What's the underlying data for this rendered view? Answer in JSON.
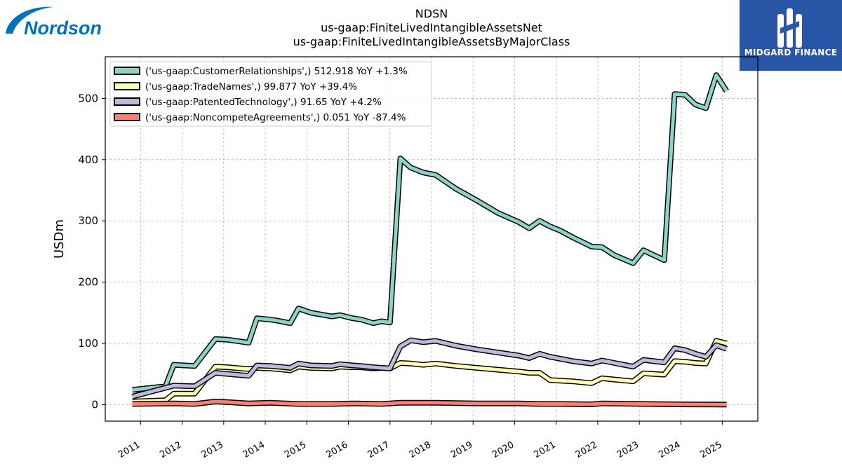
{
  "logos": {
    "left_text": "Nordson",
    "right_text": "MIDGARD FINANCE"
  },
  "colors": {
    "customer_relationships": "#8dd3c7",
    "trade_names": "#ffffb3",
    "patented_technology": "#bebada",
    "noncompete_agreements": "#fb8072",
    "brand_blue": "#0072bc",
    "midgard_blue": "#2a56a8"
  },
  "chart_data": {
    "type": "line",
    "title": [
      "NDSN",
      "us-gaap:FiniteLivedIntangibleAssetsNet",
      "us-gaap:FiniteLivedIntangibleAssetsByMajorClass"
    ],
    "xlabel": "",
    "ylabel": "USDm",
    "ylim": [
      -27,
      568
    ],
    "xlim": [
      2010.15,
      2025.85
    ],
    "yticks": [
      0,
      100,
      200,
      300,
      400,
      500
    ],
    "xticks": [
      "2011",
      "2012",
      "2013",
      "2014",
      "2015",
      "2016",
      "2017",
      "2018",
      "2019",
      "2020",
      "2021",
      "2022",
      "2023",
      "2024",
      "2025"
    ],
    "grid": true,
    "legend_position": "top-left",
    "series": [
      {
        "name": "('us-gaap:CustomerRelationships',) 512.918 YoY +1.3%",
        "color": "#8dd3c7",
        "points": [
          [
            2010.8,
            24
          ],
          [
            2011.6,
            30
          ],
          [
            2011.8,
            65
          ],
          [
            2012.3,
            63
          ],
          [
            2012.8,
            107
          ],
          [
            2013.1,
            106
          ],
          [
            2013.6,
            101
          ],
          [
            2013.8,
            141
          ],
          [
            2014.1,
            139
          ],
          [
            2014.3,
            137
          ],
          [
            2014.6,
            133
          ],
          [
            2014.8,
            157
          ],
          [
            2015.1,
            150
          ],
          [
            2015.6,
            144
          ],
          [
            2015.8,
            146
          ],
          [
            2016.1,
            141
          ],
          [
            2016.3,
            139
          ],
          [
            2016.6,
            133
          ],
          [
            2016.8,
            136
          ],
          [
            2017.0,
            134
          ],
          [
            2017.25,
            402
          ],
          [
            2017.5,
            387
          ],
          [
            2017.8,
            379
          ],
          [
            2018.1,
            375
          ],
          [
            2018.6,
            352
          ],
          [
            2019.1,
            333
          ],
          [
            2019.6,
            313
          ],
          [
            2020.1,
            298
          ],
          [
            2020.35,
            288
          ],
          [
            2020.6,
            300
          ],
          [
            2020.85,
            291
          ],
          [
            2021.1,
            284
          ],
          [
            2021.4,
            273
          ],
          [
            2021.85,
            258
          ],
          [
            2022.1,
            257
          ],
          [
            2022.4,
            244
          ],
          [
            2022.85,
            231
          ],
          [
            2023.1,
            252
          ],
          [
            2023.6,
            236
          ],
          [
            2023.85,
            507
          ],
          [
            2024.1,
            506
          ],
          [
            2024.35,
            490
          ],
          [
            2024.6,
            484
          ],
          [
            2024.85,
            538
          ],
          [
            2025.1,
            512
          ]
        ]
      },
      {
        "name": "('us-gaap:TradeNames',) 99.877 YoY +39.4%",
        "color": "#ffffb3",
        "points": [
          [
            2010.8,
            5
          ],
          [
            2011.6,
            7
          ],
          [
            2011.8,
            18
          ],
          [
            2012.3,
            18
          ],
          [
            2012.8,
            62
          ],
          [
            2013.1,
            61
          ],
          [
            2013.6,
            58
          ],
          [
            2013.8,
            60
          ],
          [
            2014.1,
            59
          ],
          [
            2014.3,
            58
          ],
          [
            2014.6,
            56
          ],
          [
            2014.8,
            62
          ],
          [
            2015.1,
            60
          ],
          [
            2015.6,
            59
          ],
          [
            2015.8,
            62
          ],
          [
            2016.1,
            61
          ],
          [
            2016.3,
            61
          ],
          [
            2016.6,
            59
          ],
          [
            2016.8,
            60
          ],
          [
            2017.0,
            59
          ],
          [
            2017.25,
            68
          ],
          [
            2017.5,
            67
          ],
          [
            2017.8,
            65
          ],
          [
            2018.1,
            67
          ],
          [
            2018.6,
            63
          ],
          [
            2019.1,
            60
          ],
          [
            2019.6,
            57
          ],
          [
            2020.1,
            54
          ],
          [
            2020.35,
            52
          ],
          [
            2020.6,
            52
          ],
          [
            2020.85,
            40
          ],
          [
            2021.1,
            39
          ],
          [
            2021.4,
            38
          ],
          [
            2021.85,
            35
          ],
          [
            2022.1,
            43
          ],
          [
            2022.4,
            41
          ],
          [
            2022.85,
            38
          ],
          [
            2023.1,
            51
          ],
          [
            2023.6,
            49
          ],
          [
            2023.85,
            71
          ],
          [
            2024.1,
            70
          ],
          [
            2024.35,
            68
          ],
          [
            2024.6,
            67
          ],
          [
            2024.85,
            104
          ],
          [
            2025.1,
            100
          ]
        ]
      },
      {
        "name": "('us-gaap:PatentedTechnology',) 91.65 YoY +4.2%",
        "color": "#bebada",
        "points": [
          [
            2010.8,
            13
          ],
          [
            2011.8,
            31
          ],
          [
            2012.3,
            30
          ],
          [
            2012.8,
            52
          ],
          [
            2013.1,
            50
          ],
          [
            2013.6,
            47
          ],
          [
            2013.8,
            64
          ],
          [
            2014.1,
            63
          ],
          [
            2014.3,
            62
          ],
          [
            2014.6,
            60
          ],
          [
            2014.8,
            67
          ],
          [
            2015.1,
            64
          ],
          [
            2015.6,
            63
          ],
          [
            2015.8,
            66
          ],
          [
            2016.1,
            64
          ],
          [
            2016.3,
            63
          ],
          [
            2016.6,
            61
          ],
          [
            2016.8,
            60
          ],
          [
            2017.0,
            59
          ],
          [
            2017.25,
            95
          ],
          [
            2017.5,
            105
          ],
          [
            2017.8,
            102
          ],
          [
            2018.1,
            104
          ],
          [
            2018.6,
            96
          ],
          [
            2019.1,
            90
          ],
          [
            2019.6,
            85
          ],
          [
            2020.1,
            80
          ],
          [
            2020.35,
            76
          ],
          [
            2020.6,
            83
          ],
          [
            2020.85,
            78
          ],
          [
            2021.1,
            75
          ],
          [
            2021.4,
            71
          ],
          [
            2021.85,
            67
          ],
          [
            2022.1,
            72
          ],
          [
            2022.4,
            68
          ],
          [
            2022.85,
            62
          ],
          [
            2023.1,
            73
          ],
          [
            2023.6,
            69
          ],
          [
            2023.85,
            92
          ],
          [
            2024.1,
            89
          ],
          [
            2024.35,
            83
          ],
          [
            2024.6,
            78
          ],
          [
            2024.85,
            97
          ],
          [
            2025.1,
            91
          ]
        ]
      },
      {
        "name": "('us-gaap:NoncompeteAgreements',) 0.051 YoY -87.4%",
        "color": "#fb8072",
        "points": [
          [
            2010.8,
            1
          ],
          [
            2011.8,
            2
          ],
          [
            2012.3,
            1
          ],
          [
            2012.8,
            5
          ],
          [
            2013.1,
            4
          ],
          [
            2013.6,
            2
          ],
          [
            2014.1,
            3
          ],
          [
            2014.8,
            1
          ],
          [
            2015.6,
            1
          ],
          [
            2016.1,
            2
          ],
          [
            2016.8,
            1
          ],
          [
            2017.25,
            3
          ],
          [
            2018.1,
            3
          ],
          [
            2019.1,
            2
          ],
          [
            2020.1,
            2
          ],
          [
            2020.6,
            1
          ],
          [
            2021.1,
            1
          ],
          [
            2021.85,
            0.5
          ],
          [
            2022.1,
            2
          ],
          [
            2023.1,
            1
          ],
          [
            2024.1,
            0.3
          ],
          [
            2025.1,
            0.05
          ]
        ]
      }
    ]
  }
}
